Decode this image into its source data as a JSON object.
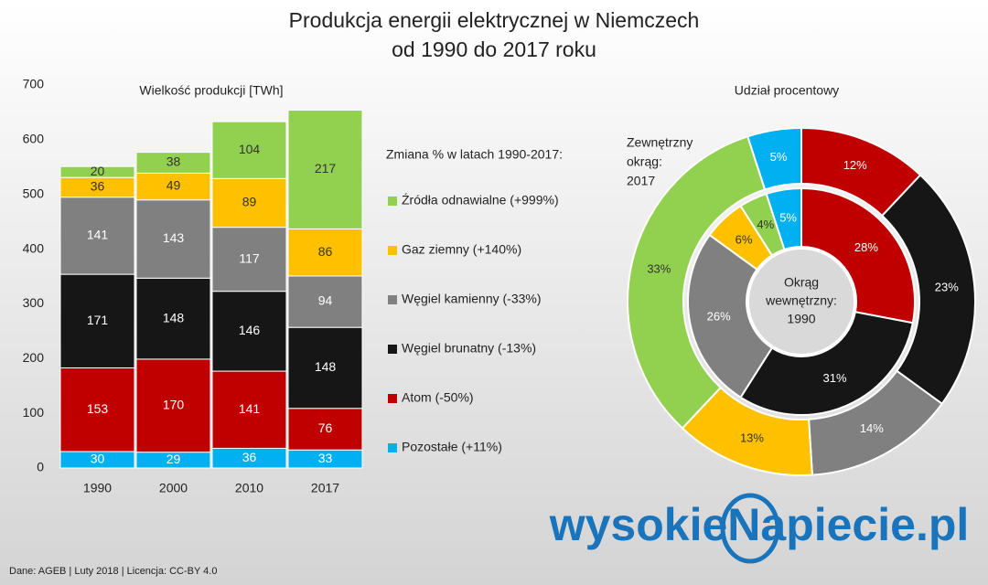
{
  "title": [
    "Produkcja energii elektrycznej w Niemczech",
    "od 1990 do 2017 roku"
  ],
  "source": "Dane: AGEB  |  Luty 2018  |  Licencja: CC-BY 4.0",
  "logo": "wysokieNapiecie.pl",
  "chart_data": [
    {
      "type": "bar",
      "stacked": true,
      "subtitle": "Wielkość produkcji [TWh]",
      "categories": [
        "1990",
        "2000",
        "2010",
        "2017"
      ],
      "ylim": [
        0,
        700
      ],
      "yticks": [
        0,
        100,
        200,
        300,
        400,
        500,
        600,
        700
      ],
      "legend_title": "Zmiana % w latach 1990-2017:",
      "series": [
        {
          "name": "Pozostałe (+11%)",
          "color": "#00b0f0",
          "label_color": "#ffffff",
          "values": [
            30,
            29,
            36,
            33
          ]
        },
        {
          "name": "Atom (-50%)",
          "color": "#c00000",
          "label_color": "#ffffff",
          "values": [
            153,
            170,
            141,
            76
          ]
        },
        {
          "name": "Węgiel brunatny (-13%)",
          "color": "#161616",
          "label_color": "#ffffff",
          "values": [
            171,
            148,
            146,
            148
          ]
        },
        {
          "name": "Węgiel kamienny (-33%)",
          "color": "#808080",
          "label_color": "#ffffff",
          "values": [
            141,
            143,
            117,
            94
          ]
        },
        {
          "name": "Gaz ziemny (+140%)",
          "color": "#ffc000",
          "label_color": "#333333",
          "values": [
            36,
            49,
            89,
            86
          ]
        },
        {
          "name": "Źródła odnawialne (+999%)",
          "color": "#92d050",
          "label_color": "#333333",
          "values": [
            20,
            38,
            104,
            217
          ]
        }
      ]
    },
    {
      "type": "donut",
      "subtitle": "Udział procentowy",
      "colors": [
        "#c00000",
        "#161616",
        "#808080",
        "#ffc000",
        "#92d050",
        "#00b0f0"
      ],
      "label_colors": [
        "#ffffff",
        "#ffffff",
        "#ffffff",
        "#333333",
        "#333333",
        "#ffffff"
      ],
      "series": [
        {
          "name": [
            "Okrąg",
            "wewnętrzny:",
            "1990"
          ],
          "values": [
            28,
            31,
            26,
            6,
            4,
            5
          ],
          "value_labels": [
            "28%",
            "31%",
            "26%",
            "6%",
            "4%",
            "5%"
          ]
        },
        {
          "name": [
            "Zewnętrzny",
            "okrąg:",
            "2017"
          ],
          "values": [
            12,
            23,
            14,
            13,
            33,
            5
          ],
          "value_labels": [
            "12%",
            "23%",
            "14%",
            "13%",
            "33%",
            "5%"
          ]
        }
      ]
    }
  ]
}
